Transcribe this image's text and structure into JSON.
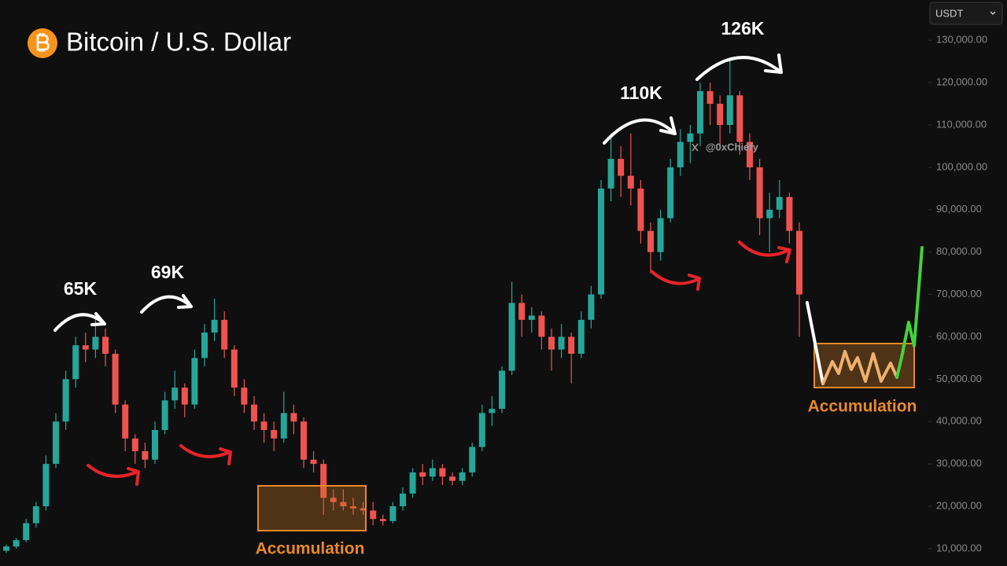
{
  "chart_data": {
    "type": "candlestick",
    "title": "Bitcoin / U.S. Dollar",
    "currency": "USDT",
    "watermark": "@0xChiefy",
    "annotations": [
      "65K",
      "69K",
      "110K",
      "126K",
      "Accumulation",
      "Accumulation"
    ],
    "up_color": "#26a69a",
    "down_color": "#ef5350",
    "ylim": [
      5900,
      139500
    ],
    "yticks": [
      {
        "value": 10000,
        "label": "10,000.00"
      },
      {
        "value": 20000,
        "label": "20,000.00"
      },
      {
        "value": 30000,
        "label": "30,000.00"
      },
      {
        "value": 40000,
        "label": "40,000.00"
      },
      {
        "value": 50000,
        "label": "50,000.00"
      },
      {
        "value": 60000,
        "label": "60,000.00"
      },
      {
        "value": 70000,
        "label": "70,000.00"
      },
      {
        "value": 80000,
        "label": "80,000.00"
      },
      {
        "value": 90000,
        "label": "90,000.00"
      },
      {
        "value": 100000,
        "label": "100,000.00"
      },
      {
        "value": 110000,
        "label": "110,000.00"
      },
      {
        "value": 120000,
        "label": "120,000.00"
      },
      {
        "value": 130000,
        "label": "130,000.00"
      }
    ],
    "open": [
      9500,
      10500,
      12000,
      16000,
      20000,
      30000,
      40000,
      50000,
      58000,
      57000,
      60000,
      56000,
      44000,
      36000,
      33000,
      31000,
      38000,
      45000,
      48000,
      44000,
      55000,
      61000,
      64000,
      57000,
      48000,
      44000,
      40000,
      38000,
      36000,
      42000,
      40000,
      31000,
      30000,
      22000,
      21000,
      20000,
      19500,
      19000,
      17000,
      16500,
      20000,
      23000,
      28000,
      27000,
      29000,
      27000,
      26000,
      28000,
      34000,
      42000,
      43000,
      52000,
      68000,
      64000,
      65000,
      60000,
      57000,
      60000,
      56000,
      64000,
      70000,
      95000,
      102000,
      98000,
      95000,
      85000,
      80000,
      88000,
      100000,
      106000,
      108000,
      118000,
      115000,
      110000,
      117000,
      106000,
      100000,
      88000,
      90000,
      93000,
      85000
    ],
    "high": [
      11000,
      12500,
      17000,
      21000,
      32000,
      42000,
      52000,
      60000,
      61000,
      65000,
      62000,
      57000,
      45000,
      37000,
      35000,
      40000,
      47000,
      52000,
      49000,
      57000,
      63000,
      69000,
      66000,
      58000,
      50000,
      46000,
      42000,
      40000,
      47000,
      44000,
      41000,
      33000,
      31000,
      24000,
      24000,
      22000,
      21000,
      21000,
      18000,
      21000,
      24500,
      29000,
      30000,
      31000,
      30000,
      28000,
      29000,
      35000,
      44000,
      46000,
      53000,
      73000,
      70000,
      67000,
      66000,
      62000,
      63000,
      61000,
      66000,
      72000,
      97000,
      108000,
      105000,
      108000,
      97000,
      87000,
      90000,
      102000,
      109000,
      110000,
      120000,
      120000,
      117000,
      126000,
      118000,
      108000,
      102000,
      94000,
      97000,
      94000,
      87000
    ],
    "low": [
      9000,
      10000,
      11500,
      15000,
      19000,
      29000,
      38000,
      48000,
      54000,
      55000,
      53000,
      42000,
      33000,
      30000,
      29000,
      30000,
      37000,
      43000,
      41000,
      43000,
      53000,
      59000,
      55000,
      46000,
      42000,
      38000,
      35000,
      33000,
      35000,
      37000,
      29000,
      28000,
      18000,
      19000,
      19000,
      18000,
      18000,
      15500,
      15500,
      16000,
      19000,
      22000,
      25000,
      26000,
      25000,
      25000,
      25000,
      27000,
      33000,
      39000,
      42000,
      51000,
      60000,
      61000,
      57000,
      52000,
      55000,
      49000,
      55000,
      62000,
      69000,
      92000,
      93000,
      91000,
      82000,
      75000,
      78000,
      87000,
      98000,
      101000,
      105000,
      110000,
      105000,
      108000,
      103000,
      97000,
      84000,
      80000,
      88000,
      82000,
      60000
    ],
    "close": [
      10500,
      12000,
      16000,
      20000,
      30000,
      40000,
      50000,
      58000,
      57000,
      60000,
      56000,
      44000,
      36000,
      33000,
      31000,
      38000,
      45000,
      48000,
      44000,
      55000,
      61000,
      64000,
      57000,
      48000,
      44000,
      40000,
      38000,
      36000,
      42000,
      40000,
      31000,
      30000,
      22000,
      21000,
      20000,
      19500,
      19000,
      17000,
      16500,
      20000,
      23000,
      28000,
      27000,
      29000,
      27000,
      26000,
      28000,
      34000,
      42000,
      43000,
      52000,
      68000,
      64000,
      65000,
      60000,
      57000,
      60000,
      56000,
      64000,
      70000,
      95000,
      102000,
      98000,
      95000,
      85000,
      80000,
      88000,
      100000,
      106000,
      108000,
      118000,
      115000,
      110000,
      117000,
      106000,
      100000,
      88000,
      90000,
      93000,
      85000,
      70000
    ]
  }
}
